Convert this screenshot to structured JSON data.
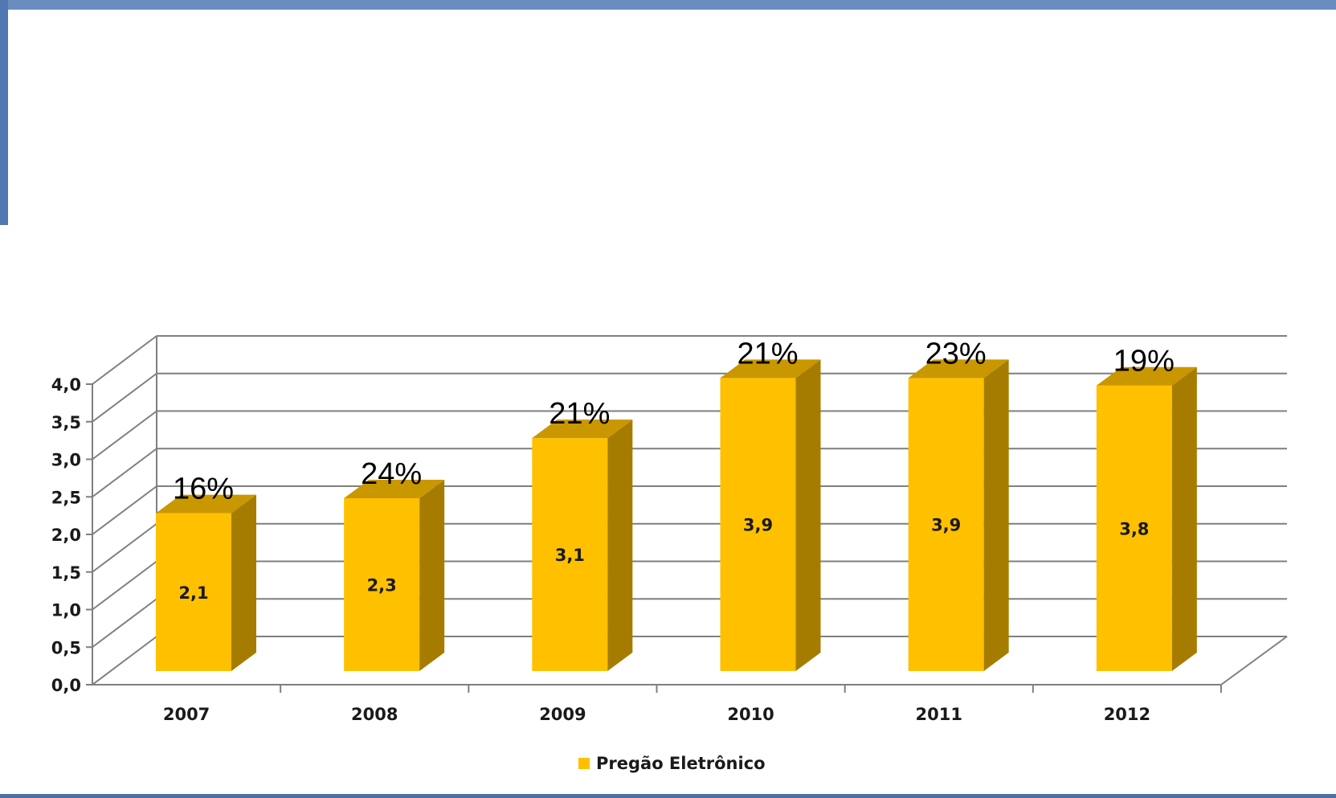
{
  "chart_data": {
    "type": "bar",
    "categories": [
      "2007",
      "2008",
      "2009",
      "2010",
      "2011",
      "2012"
    ],
    "series": [
      {
        "name": "Pregão Eletrônico",
        "values": [
          2.1,
          2.3,
          3.1,
          3.9,
          3.9,
          3.8
        ],
        "value_labels": [
          "2,1",
          "2,3",
          "3,1",
          "3,9",
          "3,9",
          "3,8"
        ],
        "top_labels": [
          "16%",
          "24%",
          "21%",
          "21%",
          "23%",
          "19%"
        ]
      }
    ],
    "yticks": [
      "0,0",
      "0,5",
      "1,0",
      "1,5",
      "2,0",
      "2,5",
      "3,0",
      "3,5",
      "4,0"
    ],
    "ylim": [
      0,
      4
    ],
    "title": "",
    "xlabel": "",
    "ylabel": "",
    "grid": true,
    "legend_position": "bottom",
    "three_d": true
  },
  "colors": {
    "bar_front": "#ffc000",
    "bar_side": "#a67c00",
    "bar_top": "#c99700",
    "grid": "#7f7f7f",
    "frame": "#5077b0"
  }
}
